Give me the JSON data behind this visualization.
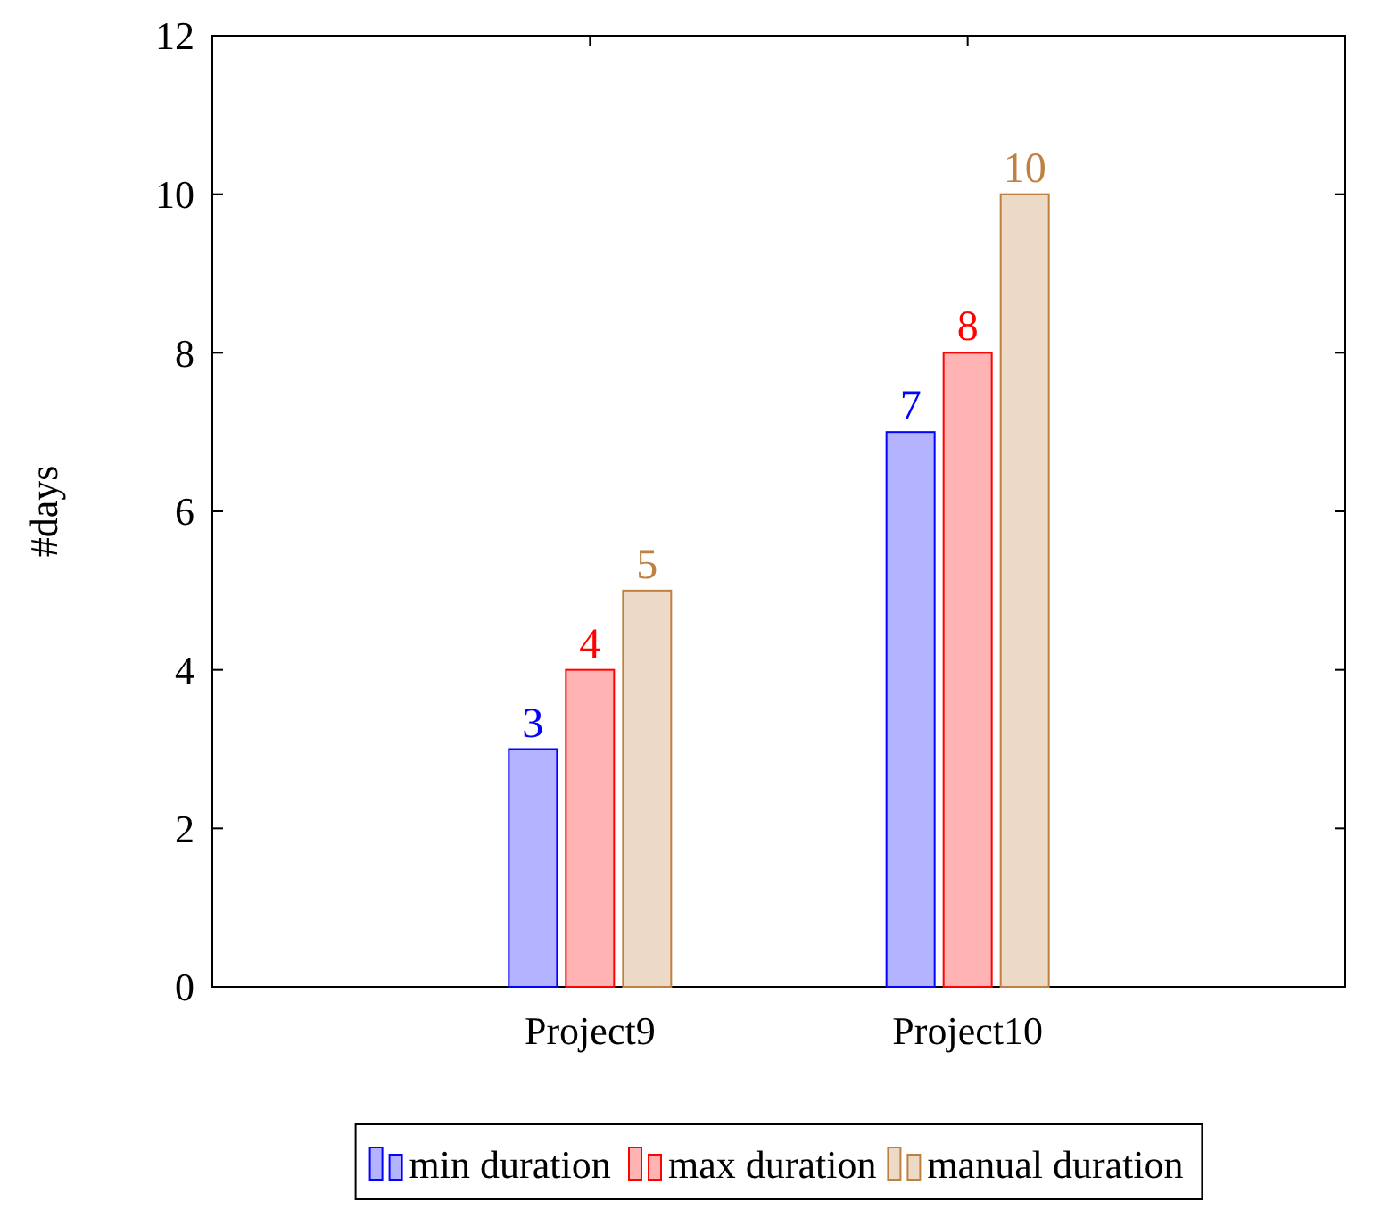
{
  "chart_data": {
    "type": "bar",
    "ylabel": "#days",
    "categories": [
      "Project9",
      "Project10"
    ],
    "series": [
      {
        "name": "min duration",
        "color": "#b3b3ff",
        "values": [
          3,
          7
        ]
      },
      {
        "name": "max duration",
        "color": "#ffb3b3",
        "values": [
          4,
          8
        ]
      },
      {
        "name": "manual duration",
        "color": "#ecd9c6",
        "values": [
          5,
          10
        ]
      }
    ],
    "ylim": [
      0,
      12
    ],
    "yticks": [
      0,
      2,
      4,
      6,
      8,
      10,
      12
    ],
    "data_labels": true,
    "legend": "bottom",
    "grid": false
  }
}
